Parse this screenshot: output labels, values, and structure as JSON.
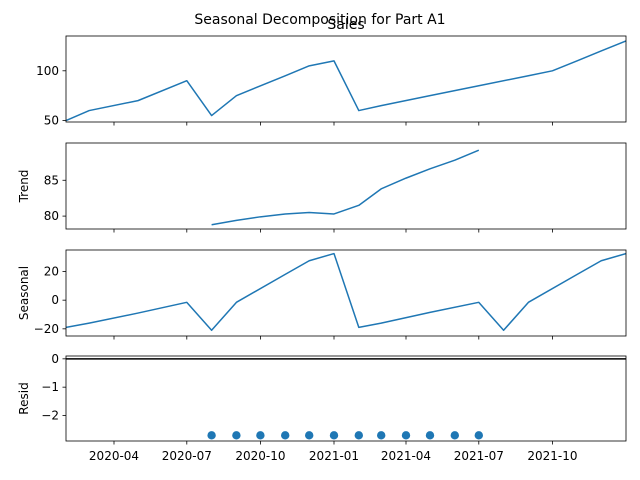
{
  "chart_data": {
    "type": "line",
    "title": "Seasonal Decomposition for Part A1",
    "colors": {
      "line": "#1f77b4",
      "axis": "#000000",
      "background": "#ffffff"
    },
    "x_tick_labels": [
      "2020-04",
      "2020-07",
      "2020-10",
      "2021-01",
      "2021-04",
      "2021-07",
      "2021-10"
    ],
    "x_ticks": [
      "2020-04-01",
      "2020-07-01",
      "2020-10-01",
      "2021-01-01",
      "2021-04-01",
      "2021-07-01",
      "2021-10-01"
    ],
    "xlim": [
      "2020-02-01",
      "2022-01-01"
    ],
    "panels": [
      {
        "key": "sales",
        "title": "Sales",
        "ylabel": "",
        "kind": "line",
        "ylim": [
          48.5,
          135
        ],
        "yticks": [
          50,
          100
        ],
        "ytick_labels": [
          "50",
          "100"
        ],
        "x": [
          "2020-02-01",
          "2020-03-01",
          "2020-05-01",
          "2020-07-01",
          "2020-08-01",
          "2020-09-01",
          "2020-11-01",
          "2020-12-01",
          "2021-01-01",
          "2021-02-01",
          "2021-03-01",
          "2021-05-01",
          "2021-07-01",
          "2021-09-01",
          "2021-10-01",
          "2021-11-01",
          "2021-12-01",
          "2022-01-01"
        ],
        "y": [
          50,
          60,
          70,
          90,
          55,
          75,
          95,
          105,
          110,
          60,
          65,
          75,
          85,
          95,
          100,
          110,
          120,
          130
        ]
      },
      {
        "key": "trend",
        "title": "",
        "ylabel": "Trend",
        "kind": "line",
        "ylim": [
          78.2,
          90.2
        ],
        "yticks": [
          80,
          85
        ],
        "ytick_labels": [
          "80",
          "85"
        ],
        "x": [
          "2020-08-01",
          "2020-09-01",
          "2020-10-01",
          "2020-11-01",
          "2020-12-01",
          "2021-01-01",
          "2021-02-01",
          "2021-03-01",
          "2021-04-01",
          "2021-05-01",
          "2021-06-01",
          "2021-07-01"
        ],
        "y": [
          78.8,
          79.4,
          79.9,
          80.3,
          80.5,
          80.3,
          81.5,
          83.8,
          85.3,
          86.6,
          87.8,
          89.2
        ]
      },
      {
        "key": "seasonal",
        "title": "",
        "ylabel": "Seasonal",
        "kind": "line",
        "ylim": [
          -25,
          35
        ],
        "yticks": [
          -20,
          0,
          20
        ],
        "ytick_labels": [
          "−20",
          "0",
          "20"
        ],
        "x": [
          "2020-02-01",
          "2020-03-01",
          "2020-05-01",
          "2020-07-01",
          "2020-08-01",
          "2020-09-01",
          "2020-11-01",
          "2020-12-01",
          "2021-01-01",
          "2021-02-01",
          "2021-03-01",
          "2021-05-01",
          "2021-07-01",
          "2021-08-01",
          "2021-09-01",
          "2021-11-01",
          "2021-12-01",
          "2022-01-01"
        ],
        "y": [
          -19,
          -16,
          -9,
          -1.5,
          -21,
          -1.5,
          18,
          27.5,
          32.5,
          -19,
          -16,
          -8.5,
          -1.5,
          -21,
          -1.5,
          18,
          27.5,
          32.5
        ]
      },
      {
        "key": "resid",
        "title": "",
        "ylabel": "Resid",
        "kind": "scatter",
        "ylim": [
          -2.9,
          0.1
        ],
        "yticks": [
          -2,
          -1,
          0
        ],
        "ytick_labels": [
          "−2",
          "−1",
          "0"
        ],
        "zero_line": true,
        "x": [
          "2020-08-01",
          "2020-09-01",
          "2020-10-01",
          "2020-11-01",
          "2020-12-01",
          "2021-01-01",
          "2021-02-01",
          "2021-03-01",
          "2021-04-01",
          "2021-05-01",
          "2021-06-01",
          "2021-07-01"
        ],
        "y": [
          -2.7,
          -2.7,
          -2.7,
          -2.7,
          -2.7,
          -2.7,
          -2.7,
          -2.7,
          -2.7,
          -2.7,
          -2.7,
          -2.7
        ]
      }
    ]
  }
}
